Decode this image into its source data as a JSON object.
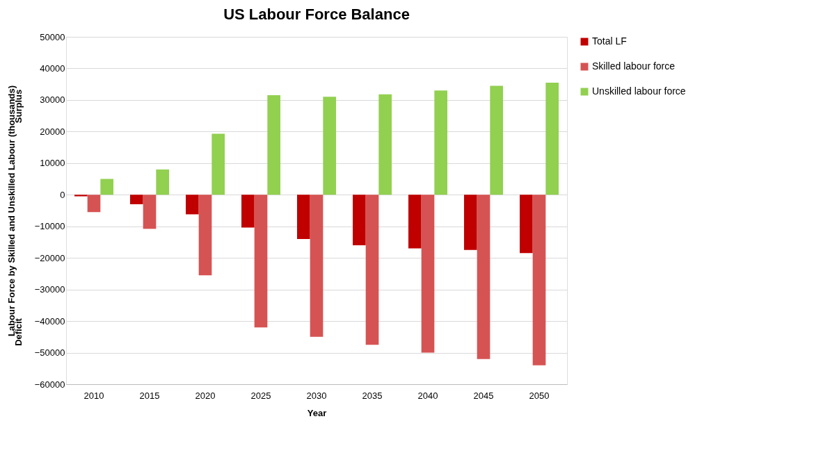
{
  "chart_data": {
    "type": "bar",
    "title": "US Labour Force Balance",
    "xlabel": "Year",
    "ylabel": "Labour Force by Skilled and Unskilled Labour (thousands)",
    "annotations": [
      "Surplus",
      "Deficit"
    ],
    "categories": [
      "2010",
      "2015",
      "2020",
      "2025",
      "2030",
      "2035",
      "2040",
      "2045",
      "2050"
    ],
    "series": [
      {
        "name": "Total LF",
        "color": "#c00000",
        "values": [
          -500,
          -3000,
          -6200,
          -10400,
          -14000,
          -16000,
          -17000,
          -17500,
          -18500
        ]
      },
      {
        "name": "Skilled labour force",
        "color": "#d65353",
        "values": [
          -5500,
          -10800,
          -25500,
          -42000,
          -45000,
          -47500,
          -50000,
          -52000,
          -54000
        ]
      },
      {
        "name": "Unskilled labour force",
        "color": "#92d050",
        "values": [
          5000,
          8000,
          19300,
          31500,
          31000,
          31800,
          33000,
          34500,
          35500
        ]
      }
    ],
    "ylim": [
      -60000,
      50000
    ],
    "yticks": [
      -60000,
      -50000,
      -40000,
      -30000,
      -20000,
      -10000,
      0,
      10000,
      20000,
      30000,
      40000,
      50000
    ],
    "grid": "y",
    "legend": "right"
  }
}
